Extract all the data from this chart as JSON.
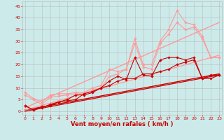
{
  "bg_color": "#cceaea",
  "grid_color": "#bbbbbb",
  "xlabel": "Vent moyen/en rafales ( km/h )",
  "xlabel_color": "#cc0000",
  "xlabel_fontsize": 6.0,
  "tick_color": "#cc0000",
  "tick_fontsize": 4.5,
  "x_ticks": [
    0,
    1,
    2,
    3,
    4,
    5,
    6,
    7,
    8,
    9,
    10,
    11,
    12,
    13,
    14,
    15,
    16,
    17,
    18,
    19,
    20,
    21,
    22,
    23
  ],
  "y_ticks": [
    0,
    5,
    10,
    15,
    20,
    25,
    30,
    35,
    40,
    45
  ],
  "xlim": [
    -0.3,
    23.3
  ],
  "ylim": [
    -1.5,
    47
  ],
  "line1_x": [
    0,
    1,
    2,
    3,
    4,
    5,
    6,
    7,
    8,
    9,
    10,
    11,
    12,
    13,
    14,
    15,
    16,
    17,
    18,
    19,
    20,
    21,
    22,
    23
  ],
  "line1_y": [
    2.5,
    0.5,
    2.0,
    2.5,
    4.0,
    5.0,
    7.0,
    7.0,
    8.0,
    10.0,
    13.0,
    15.0,
    13.5,
    23.0,
    15.5,
    15.0,
    22.0,
    23.0,
    23.0,
    22.0,
    23.0,
    14.0,
    15.5,
    15.5
  ],
  "line1_color": "#cc0000",
  "line1_lw": 0.8,
  "line1_marker": "D",
  "line1_ms": 1.8,
  "line2_x": [
    0,
    1,
    2,
    3,
    4,
    5,
    6,
    7,
    8,
    9,
    10,
    11,
    12,
    13,
    14,
    15,
    16,
    17,
    18,
    19,
    20,
    21,
    22,
    23
  ],
  "line2_y": [
    2.5,
    0.5,
    1.5,
    3.0,
    4.0,
    4.5,
    5.0,
    7.5,
    8.5,
    10.0,
    11.0,
    13.0,
    14.0,
    14.0,
    16.0,
    16.0,
    17.0,
    18.0,
    20.0,
    21.0,
    22.0,
    14.0,
    14.0,
    15.5
  ],
  "line2_color": "#cc0000",
  "line2_lw": 0.8,
  "line2_marker": "D",
  "line2_ms": 1.8,
  "line3_x": [
    0,
    1,
    2,
    3,
    4,
    5,
    6,
    7,
    8,
    9,
    10,
    11,
    12,
    13,
    14,
    15,
    16,
    17,
    18,
    19,
    20,
    21,
    22,
    23
  ],
  "line3_y": [
    8.0,
    5.5,
    4.0,
    7.0,
    7.5,
    7.5,
    8.0,
    8.0,
    10.0,
    11.0,
    18.0,
    17.0,
    18.0,
    31.0,
    20.0,
    20.0,
    30.0,
    35.0,
    43.0,
    38.0,
    37.0,
    32.0,
    23.0,
    23.0
  ],
  "line3_color": "#ff9999",
  "line3_lw": 0.8,
  "line3_marker": "D",
  "line3_ms": 1.8,
  "line4_x": [
    0,
    1,
    2,
    3,
    4,
    5,
    6,
    7,
    8,
    9,
    10,
    11,
    12,
    13,
    14,
    15,
    16,
    17,
    18,
    19,
    20,
    21,
    22,
    23
  ],
  "line4_y": [
    7.0,
    5.0,
    3.0,
    6.0,
    6.5,
    7.0,
    7.5,
    7.5,
    9.0,
    10.0,
    15.0,
    16.0,
    18.0,
    29.0,
    19.0,
    18.0,
    29.0,
    33.0,
    38.0,
    35.0,
    36.0,
    31.0,
    23.0,
    23.0
  ],
  "line4_color": "#ff9999",
  "line4_lw": 0.8,
  "line4_marker": "D",
  "line4_ms": 1.8,
  "line5_x": [
    0,
    23
  ],
  "line5_y": [
    0.5,
    16.0
  ],
  "line5_color": "#cc0000",
  "line5_lw": 1.0,
  "line6_x": [
    0,
    23
  ],
  "line6_y": [
    1.5,
    38.0
  ],
  "line6_color": "#ff9999",
  "line6_lw": 1.0,
  "line7_x": [
    0,
    23
  ],
  "line7_y": [
    0.5,
    24.0
  ],
  "line7_color": "#ff9999",
  "line7_lw": 0.9,
  "line8_x": [
    0,
    23
  ],
  "line8_y": [
    0.0,
    15.5
  ],
  "line8_color": "#cc0000",
  "line8_lw": 0.9
}
